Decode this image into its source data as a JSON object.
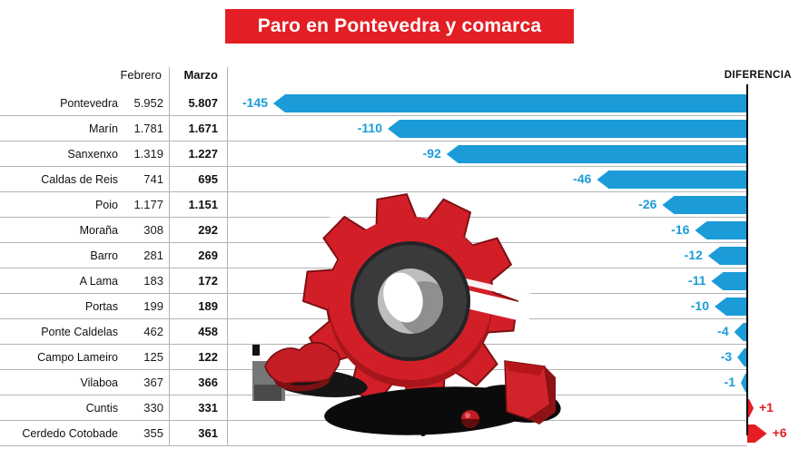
{
  "title": "Paro en Pontevedra y comarca",
  "columns": {
    "febrero": "Febrero",
    "marzo": "Marzo",
    "diferencia": "DIFERENCIA"
  },
  "colors": {
    "accent_red": "#e31e24",
    "bar_blue": "#1b9cd8",
    "bar_red": "#e31e24",
    "line_gray": "#b4b4b4"
  },
  "rows": [
    {
      "name": "Pontevedra",
      "febrero": "5.952",
      "marzo": "5.807",
      "diff": "-145",
      "diff_value": -145
    },
    {
      "name": "Marín",
      "febrero": "1.781",
      "marzo": "1.671",
      "diff": "-110",
      "diff_value": -110
    },
    {
      "name": "Sanxenxo",
      "febrero": "1.319",
      "marzo": "1.227",
      "diff": "-92",
      "diff_value": -92
    },
    {
      "name": "Caldas de Reis",
      "febrero": "741",
      "marzo": "695",
      "diff": "-46",
      "diff_value": -46
    },
    {
      "name": "Poio",
      "febrero": "1.177",
      "marzo": "1.151",
      "diff": "-26",
      "diff_value": -26
    },
    {
      "name": "Moraña",
      "febrero": "308",
      "marzo": "292",
      "diff": "-16",
      "diff_value": -16
    },
    {
      "name": "Barro",
      "febrero": "281",
      "marzo": "269",
      "diff": "-12",
      "diff_value": -12
    },
    {
      "name": "A Lama",
      "febrero": "183",
      "marzo": "172",
      "diff": "-11",
      "diff_value": -11
    },
    {
      "name": "Portas",
      "febrero": "199",
      "marzo": "189",
      "diff": "-10",
      "diff_value": -10
    },
    {
      "name": "Ponte Caldelas",
      "febrero": "462",
      "marzo": "458",
      "diff": "-4",
      "diff_value": -4
    },
    {
      "name": "Campo Lameiro",
      "febrero": "125",
      "marzo": "122",
      "diff": "-3",
      "diff_value": -3
    },
    {
      "name": "Vilaboa",
      "febrero": "367",
      "marzo": "366",
      "diff": "-1",
      "diff_value": -1
    },
    {
      "name": "Cuntis",
      "febrero": "330",
      "marzo": "331",
      "diff": "+1",
      "diff_value": 1
    },
    {
      "name": "Cerdedo Cotobade",
      "febrero": "355",
      "marzo": "361",
      "diff": "+6",
      "diff_value": 6
    }
  ],
  "chart_data": {
    "type": "bar",
    "orientation": "horizontal",
    "title": "Paro en Pontevedra y comarca",
    "categories": [
      "Pontevedra",
      "Marín",
      "Sanxenxo",
      "Caldas de Reis",
      "Poio",
      "Moraña",
      "Barro",
      "A Lama",
      "Portas",
      "Ponte Caldelas",
      "Campo Lameiro",
      "Vilaboa",
      "Cuntis",
      "Cerdedo Cotobade"
    ],
    "series": [
      {
        "name": "Febrero",
        "values": [
          5952,
          1781,
          1319,
          741,
          1177,
          308,
          281,
          183,
          199,
          462,
          125,
          367,
          330,
          355
        ]
      },
      {
        "name": "Marzo",
        "values": [
          5807,
          1671,
          1227,
          695,
          1151,
          292,
          269,
          172,
          189,
          458,
          122,
          366,
          331,
          361
        ]
      },
      {
        "name": "Diferencia",
        "values": [
          -145,
          -110,
          -92,
          -46,
          -26,
          -16,
          -12,
          -11,
          -10,
          -4,
          -3,
          -1,
          1,
          6
        ]
      }
    ],
    "value_axis_label": "DIFERENCIA",
    "baseline": 0,
    "negative_color": "#1b9cd8",
    "positive_color": "#e31e24",
    "grid": "horizontal-row-separators",
    "legend": "none"
  }
}
